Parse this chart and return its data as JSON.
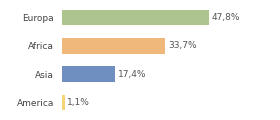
{
  "categories": [
    "Europa",
    "Africa",
    "Asia",
    "America"
  ],
  "values": [
    47.8,
    33.7,
    17.4,
    1.1
  ],
  "labels": [
    "47,8%",
    "33,7%",
    "17,4%",
    "1,1%"
  ],
  "bar_colors": [
    "#aec48e",
    "#f0b87a",
    "#6e8fbf",
    "#f5d57a"
  ],
  "background_color": "#ffffff",
  "xlim": [
    0,
    60
  ],
  "label_fontsize": 6.5,
  "tick_fontsize": 6.5
}
